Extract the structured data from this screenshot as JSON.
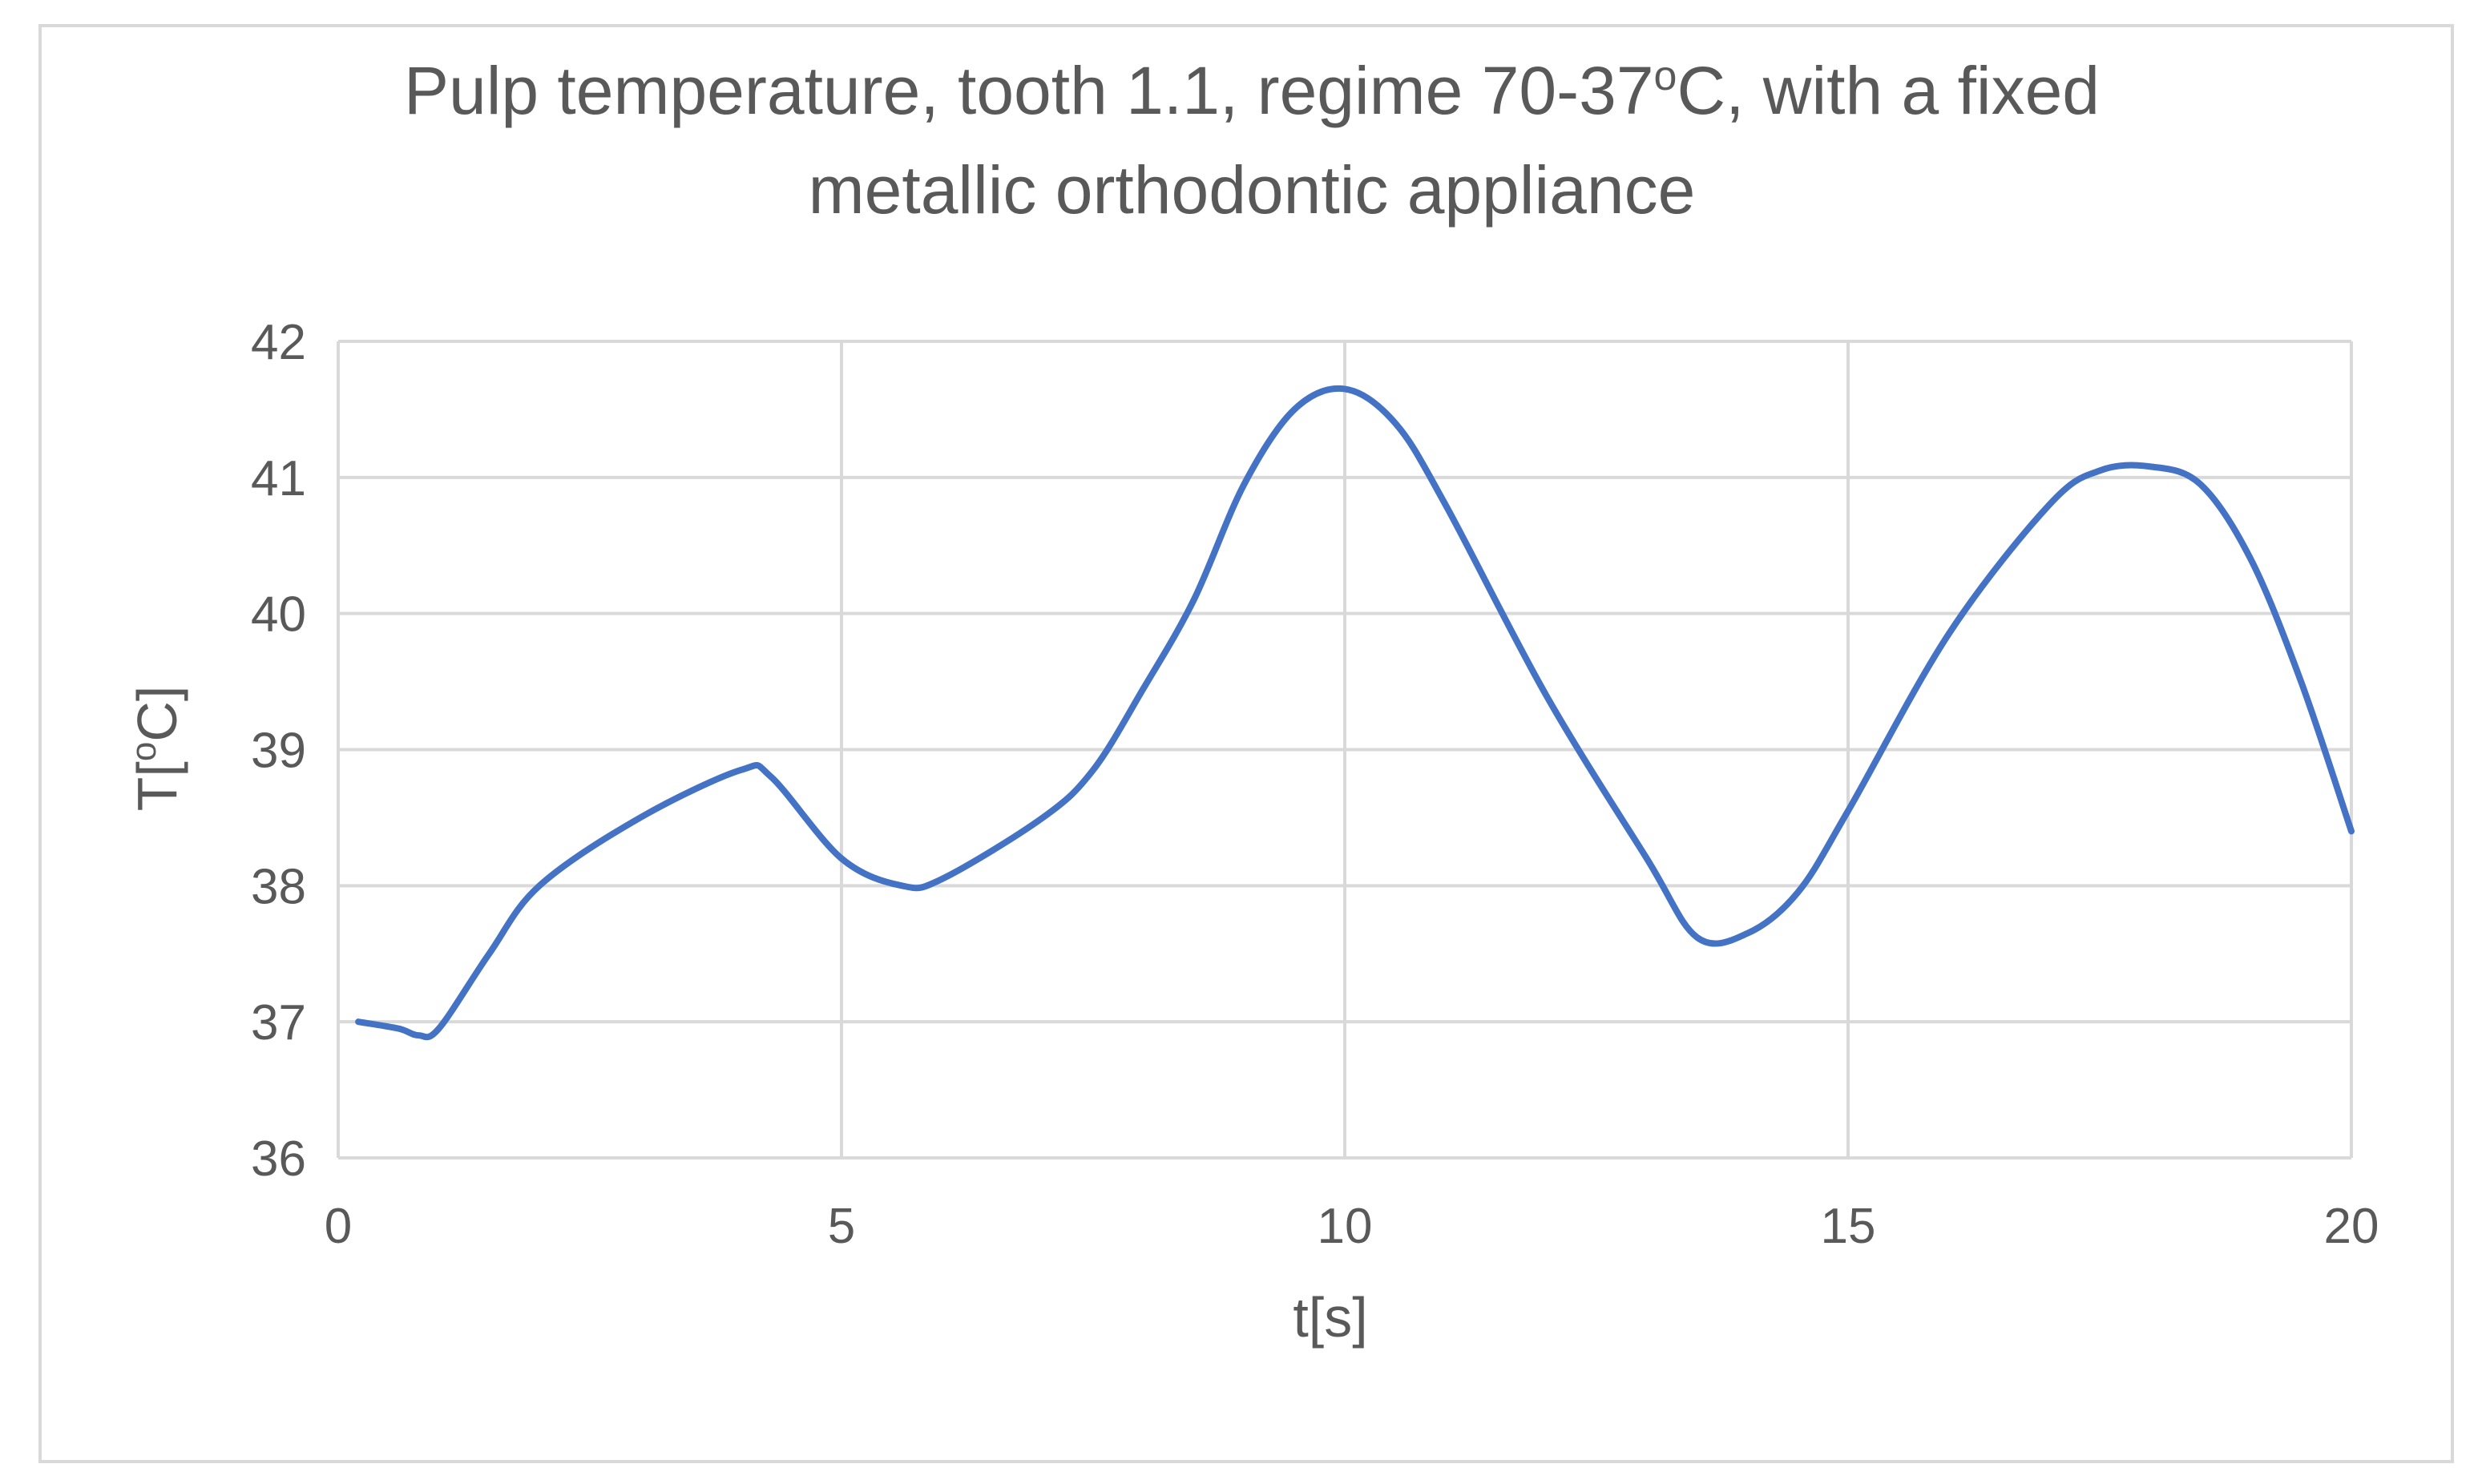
{
  "chart_data": {
    "type": "line",
    "title_line1": "Pulp temperature, tooth 1.1, regime 70-37",
    "title_sup": "o",
    "title_line1_end": "C, with a fixed",
    "title_line2": "metallic orthodontic appliance",
    "xlabel": "t[s]",
    "ylabel_prefix": "T[",
    "ylabel_sup": "o",
    "ylabel_suffix": "C]",
    "xlim": [
      0,
      20
    ],
    "ylim": [
      36,
      42
    ],
    "xticks": [
      "0",
      "5",
      "10",
      "15",
      "20"
    ],
    "yticks": [
      "36",
      "37",
      "38",
      "39",
      "40",
      "41",
      "42"
    ],
    "grid": true,
    "legend": "none",
    "series": [
      {
        "color": "#4472c4",
        "x": [
          0.2,
          0.6,
          0.8,
          1.0,
          1.5,
          2.0,
          3.0,
          4.0,
          4.3,
          5.0,
          5.6,
          6.0,
          7.0,
          7.5,
          8.0,
          8.5,
          9.0,
          9.5,
          10.0,
          10.5,
          11.0,
          12.0,
          13.0,
          13.5,
          14.0,
          14.5,
          15.0,
          16.0,
          17.0,
          17.5,
          18.0,
          18.5,
          19.0,
          19.5,
          20.0
        ],
        "y": [
          37.0,
          36.95,
          36.9,
          36.95,
          37.5,
          38.0,
          38.5,
          38.85,
          38.8,
          38.2,
          38.0,
          38.05,
          38.5,
          38.85,
          39.45,
          40.1,
          40.95,
          41.5,
          41.65,
          41.4,
          40.8,
          39.4,
          38.2,
          37.62,
          37.65,
          37.95,
          38.55,
          39.85,
          40.8,
          41.05,
          41.08,
          40.95,
          40.4,
          39.5,
          38.4
        ]
      }
    ]
  }
}
